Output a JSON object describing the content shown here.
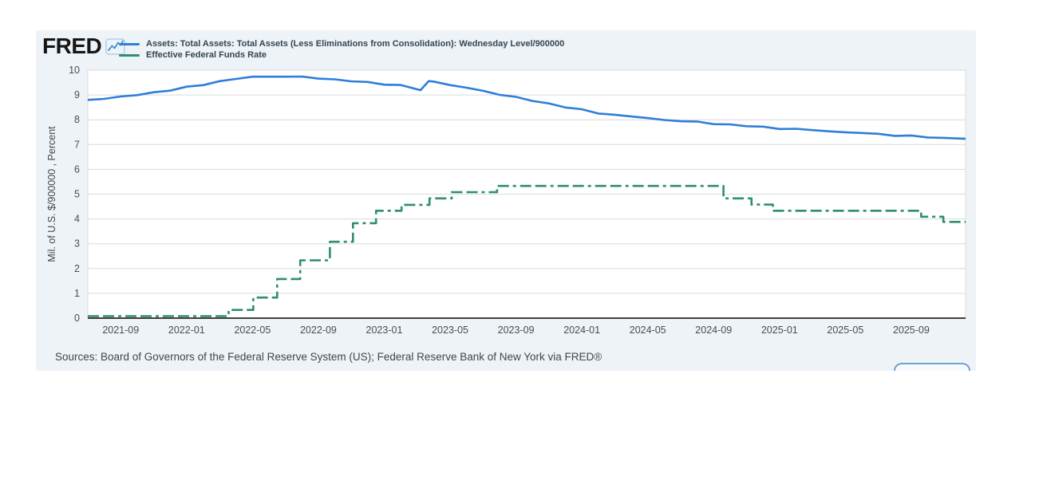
{
  "header": {
    "logo_text": "FRED",
    "logo_icon": "line-chart-icon"
  },
  "legend": {
    "items": [
      {
        "label": "Assets: Total Assets: Total Assets (Less Eliminations from Consolidation): Wednesday Level/900000",
        "color": "#2f7ed8",
        "style": "solid"
      },
      {
        "label": "Effective Federal Funds Rate",
        "color": "#2e8d74",
        "style": "dashed"
      }
    ]
  },
  "footer": {
    "sources_text": "Sources: Board of Governors of the Federal Reserve System (US); Federal Reserve Bank of New York via FRED®"
  },
  "colors": {
    "card_bg": "#eef3f8",
    "plot_bg": "#ffffff",
    "grid": "#d8dadc",
    "axis": "#404040",
    "tick_text": "#4c4c4c",
    "series1": "#2f7ed8",
    "series2": "#2e8d74"
  },
  "chart_data": {
    "type": "line",
    "title": "",
    "xlabel": "",
    "ylabel": "Mil. of U.S. $/900000 , Percent",
    "ylim": [
      0,
      10
    ],
    "yticks": [
      0,
      1,
      2,
      3,
      4,
      5,
      6,
      7,
      8,
      9,
      10
    ],
    "x_axis_note": "x values are months since 2021-07",
    "xlim": [
      0,
      53.3
    ],
    "grid": true,
    "legend_position": "top",
    "xticks": [
      {
        "x": 2,
        "label": "2021-09"
      },
      {
        "x": 6,
        "label": "2022-01"
      },
      {
        "x": 10,
        "label": "2022-05"
      },
      {
        "x": 14,
        "label": "2022-09"
      },
      {
        "x": 18,
        "label": "2023-01"
      },
      {
        "x": 22,
        "label": "2023-05"
      },
      {
        "x": 26,
        "label": "2023-09"
      },
      {
        "x": 30,
        "label": "2024-01"
      },
      {
        "x": 34,
        "label": "2024-05"
      },
      {
        "x": 38,
        "label": "2024-09"
      },
      {
        "x": 42,
        "label": "2025-01"
      },
      {
        "x": 46,
        "label": "2025-05"
      },
      {
        "x": 50,
        "label": "2025-09"
      }
    ],
    "series": [
      {
        "name": "Assets: Total Assets: Total Assets (Less Eliminations from Consolidation): Wednesday Level/900000",
        "color": "#2f7ed8",
        "mode": "linear",
        "wobble": 0.022,
        "points": [
          [
            0,
            8.8
          ],
          [
            1,
            8.86
          ],
          [
            2,
            8.92
          ],
          [
            3,
            9.0
          ],
          [
            4,
            9.1
          ],
          [
            5,
            9.2
          ],
          [
            6,
            9.3
          ],
          [
            7,
            9.42
          ],
          [
            8,
            9.55
          ],
          [
            9,
            9.65
          ],
          [
            10,
            9.72
          ],
          [
            11,
            9.75
          ],
          [
            12,
            9.74
          ],
          [
            13,
            9.72
          ],
          [
            14,
            9.68
          ],
          [
            15,
            9.62
          ],
          [
            16,
            9.56
          ],
          [
            17,
            9.5
          ],
          [
            18,
            9.45
          ],
          [
            19,
            9.38
          ],
          [
            20.2,
            9.18
          ],
          [
            20.7,
            9.58
          ],
          [
            21,
            9.54
          ],
          [
            22,
            9.41
          ],
          [
            23,
            9.28
          ],
          [
            24,
            9.16
          ],
          [
            25,
            9.03
          ],
          [
            26,
            8.9
          ],
          [
            27,
            8.77
          ],
          [
            28,
            8.65
          ],
          [
            29,
            8.52
          ],
          [
            30,
            8.39
          ],
          [
            31,
            8.27
          ],
          [
            32,
            8.2
          ],
          [
            33,
            8.13
          ],
          [
            34,
            8.06
          ],
          [
            35,
            8.0
          ],
          [
            36,
            7.95
          ],
          [
            37,
            7.9
          ],
          [
            38,
            7.85
          ],
          [
            39,
            7.8
          ],
          [
            40,
            7.75
          ],
          [
            41,
            7.7
          ],
          [
            42,
            7.66
          ],
          [
            43,
            7.62
          ],
          [
            44,
            7.58
          ],
          [
            45,
            7.54
          ],
          [
            46,
            7.5
          ],
          [
            47,
            7.46
          ],
          [
            48,
            7.42
          ],
          [
            49,
            7.38
          ],
          [
            50,
            7.34
          ],
          [
            51,
            7.3
          ],
          [
            52,
            7.26
          ],
          [
            53.3,
            7.22
          ]
        ]
      },
      {
        "name": "Effective Federal Funds Rate",
        "color": "#2e8d74",
        "mode": "step",
        "dash": "14 5 14 5 4 5",
        "points": [
          [
            0,
            0.08
          ],
          [
            8.55,
            0.33
          ],
          [
            10.05,
            0.83
          ],
          [
            11.5,
            1.58
          ],
          [
            12.9,
            2.33
          ],
          [
            14.7,
            3.08
          ],
          [
            16.1,
            3.83
          ],
          [
            17.5,
            4.33
          ],
          [
            19.05,
            4.57
          ],
          [
            20.75,
            4.83
          ],
          [
            22.1,
            5.08
          ],
          [
            24.85,
            5.33
          ],
          [
            38.6,
            4.83
          ],
          [
            40.3,
            4.58
          ],
          [
            41.6,
            4.33
          ],
          [
            50.6,
            4.09
          ],
          [
            51.95,
            3.88
          ]
        ]
      }
    ]
  }
}
